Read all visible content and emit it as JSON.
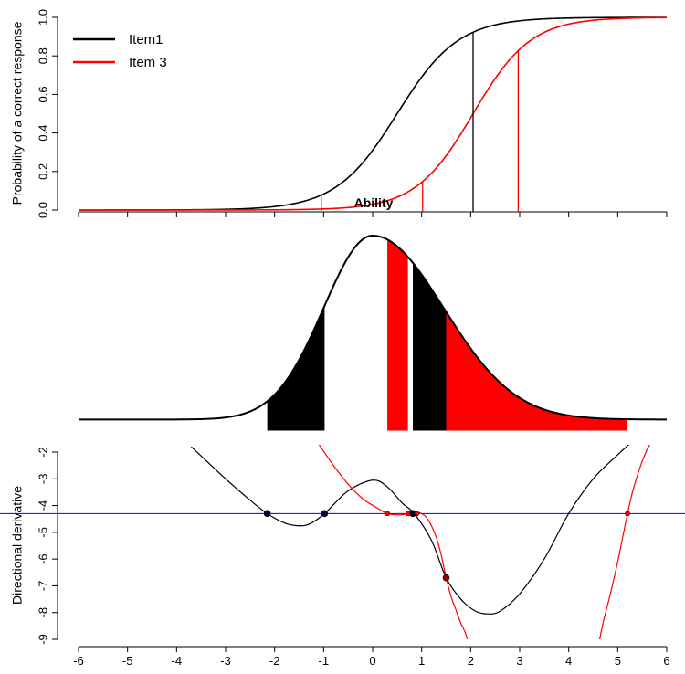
{
  "chart_data": [
    {
      "type": "line",
      "panel": "top",
      "ylabel": "Probability of a correct response",
      "annotation": "Ability",
      "xlim": [
        -6,
        6
      ],
      "ylim": [
        0,
        1
      ],
      "yticks": [
        0.0,
        0.2,
        0.4,
        0.6,
        0.8,
        1.0
      ],
      "ytick_labels": [
        "0.0",
        "0.2",
        "0.4",
        "0.6",
        "0.8",
        "1.0"
      ],
      "legend_position": "top-left",
      "series": [
        {
          "name": "Item1",
          "color": "#000000",
          "a": 1.6,
          "b": 0.5,
          "D": 1.0
        },
        {
          "name": "Item 3",
          "color": "#ff0000",
          "a": 1.7,
          "b": 2.05,
          "D": 1.0
        }
      ],
      "vlines": [
        {
          "x": -1.05,
          "series": 0
        },
        {
          "x": 2.05,
          "series": 0
        },
        {
          "x": 1.02,
          "series": 1
        },
        {
          "x": 2.97,
          "series": 1
        }
      ]
    },
    {
      "type": "area",
      "panel": "middle",
      "density": "skewed-normal",
      "mode_x": 0.0,
      "peak": 1.0,
      "shaded_regions": [
        {
          "from": -2.15,
          "to": -0.98,
          "color": "#000000"
        },
        {
          "from": 0.3,
          "to": 0.72,
          "color": "#ff0000"
        },
        {
          "from": 0.82,
          "to": 1.5,
          "color": "#000000"
        },
        {
          "from": 1.5,
          "to": 5.2,
          "color": "#ff0000"
        }
      ]
    },
    {
      "type": "line",
      "panel": "bottom",
      "ylabel": "Directional derivative",
      "xlim": [
        -6,
        6
      ],
      "ylim": [
        -9,
        -2
      ],
      "xticks": [
        -6,
        -5,
        -4,
        -3,
        -2,
        -1,
        0,
        1,
        2,
        3,
        4,
        5,
        6
      ],
      "xtick_labels": [
        "-6",
        "-5",
        "-4",
        "-3",
        "-2",
        "-1",
        "0",
        "1",
        "2",
        "3",
        "4",
        "5",
        "6"
      ],
      "yticks": [
        -2,
        -3,
        -4,
        -5,
        -6,
        -7,
        -8,
        -9
      ],
      "ytick_labels": [
        "-2",
        "-3",
        "-4",
        "-5",
        "-6",
        "-7",
        "-8",
        "-9"
      ],
      "hline": {
        "y": -4.3,
        "color": "#0000ff"
      },
      "series": [
        {
          "color": "#000000",
          "x": [
            -3.7,
            -3.0,
            -2.5,
            -2.15,
            -1.8,
            -1.55,
            -1.3,
            -0.98,
            -0.5,
            0.0,
            0.3,
            0.6,
            0.85,
            1.2,
            1.5,
            1.8,
            2.1,
            2.35,
            2.6,
            3.0,
            3.5,
            4.0,
            4.5,
            5.0,
            5.3
          ],
          "y": [
            -1.8,
            -3.0,
            -3.8,
            -4.3,
            -4.65,
            -4.75,
            -4.7,
            -4.3,
            -3.45,
            -3.05,
            -3.3,
            -3.9,
            -4.3,
            -5.3,
            -6.7,
            -7.5,
            -7.95,
            -8.05,
            -7.95,
            -7.3,
            -6.0,
            -4.3,
            -3.0,
            -2.1,
            -1.6
          ]
        },
        {
          "color": "#ff0000",
          "x": [
            -1.1,
            -0.8,
            -0.5,
            -0.2,
            0.1,
            0.3,
            0.55,
            0.72,
            0.82,
            0.9,
            1.0,
            1.1,
            1.2,
            1.3,
            1.4,
            1.5,
            1.6,
            1.7,
            1.8,
            1.9,
            1.97
          ],
          "y": [
            -1.7,
            -2.5,
            -3.2,
            -3.75,
            -4.1,
            -4.3,
            -4.35,
            -4.3,
            -4.25,
            -4.25,
            -4.3,
            -4.45,
            -4.75,
            -5.2,
            -5.85,
            -6.7,
            -7.4,
            -7.9,
            -8.4,
            -8.8,
            -9.3
          ]
        },
        {
          "color": "#ff0000",
          "x": [
            4.6,
            4.7,
            4.85,
            5.0,
            5.1,
            5.2,
            5.3,
            5.45,
            5.6,
            5.7
          ],
          "y": [
            -9.3,
            -8.4,
            -7.3,
            -6.1,
            -5.2,
            -4.3,
            -3.5,
            -2.6,
            -1.9,
            -1.6
          ]
        }
      ],
      "points": [
        {
          "x": -2.15,
          "y": -4.3,
          "fill": "#000033"
        },
        {
          "x": -0.98,
          "y": -4.3,
          "fill": "#000033"
        },
        {
          "x": 0.82,
          "y": -4.3,
          "fill": "#000033"
        },
        {
          "x": 0.3,
          "y": -4.3,
          "fill": "#ff0000"
        },
        {
          "x": 0.72,
          "y": -4.3,
          "fill": "#ff0000"
        },
        {
          "x": 0.9,
          "y": -4.3,
          "fill": "#ff0000"
        },
        {
          "x": 5.2,
          "y": -4.3,
          "fill": "#ff0000"
        },
        {
          "x": 1.5,
          "y": -6.7,
          "fill": "#990000"
        }
      ]
    }
  ]
}
